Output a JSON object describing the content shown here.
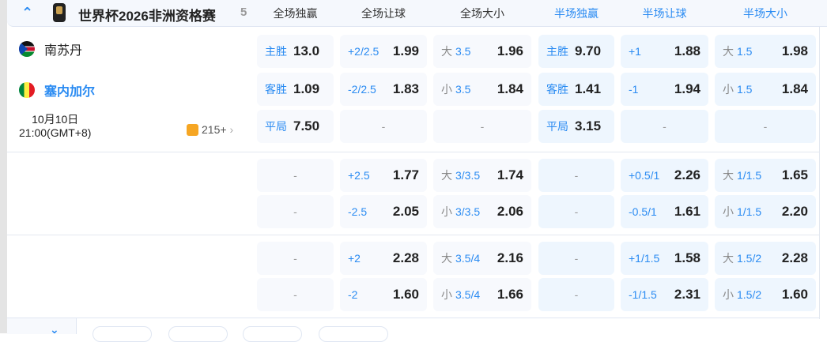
{
  "header": {
    "league": "世界杯2026非洲资格赛",
    "count": "5",
    "columns": [
      "全场独赢",
      "全场让球",
      "全场大小",
      "半场独赢",
      "半场让球",
      "半场大小"
    ]
  },
  "match": {
    "home": "南苏丹",
    "away": "塞内加尔",
    "date": "10月10日",
    "time": "21:00(GMT+8)",
    "more": "215+"
  },
  "rows": [
    [
      [
        "主胜",
        "13.0"
      ],
      [
        "+2/2.5",
        "1.99"
      ],
      [
        "大",
        "3.5",
        "1.96"
      ],
      [
        "主胜",
        "9.70"
      ],
      [
        "+1",
        "1.88"
      ],
      [
        "大",
        "1.5",
        "1.98"
      ]
    ],
    [
      [
        "客胜",
        "1.09"
      ],
      [
        "-2/2.5",
        "1.83"
      ],
      [
        "小",
        "3.5",
        "1.84"
      ],
      [
        "客胜",
        "1.41"
      ],
      [
        "-1",
        "1.94"
      ],
      [
        "小",
        "1.5",
        "1.84"
      ]
    ],
    [
      [
        "平局",
        "7.50"
      ],
      [
        "-"
      ],
      [
        "-"
      ],
      [
        "平局",
        "3.15"
      ],
      [
        "-"
      ],
      [
        "-"
      ]
    ],
    [
      [
        "-"
      ],
      [
        "+2.5",
        "1.77"
      ],
      [
        "大",
        "3/3.5",
        "1.74"
      ],
      [
        "-"
      ],
      [
        "+0.5/1",
        "2.26"
      ],
      [
        "大",
        "1/1.5",
        "1.65"
      ]
    ],
    [
      [
        "-"
      ],
      [
        "-2.5",
        "2.05"
      ],
      [
        "小",
        "3/3.5",
        "2.06"
      ],
      [
        "-"
      ],
      [
        "-0.5/1",
        "1.61"
      ],
      [
        "小",
        "1/1.5",
        "2.20"
      ]
    ],
    [
      [
        "-"
      ],
      [
        "+2",
        "2.28"
      ],
      [
        "大",
        "3.5/4",
        "2.16"
      ],
      [
        "-"
      ],
      [
        "+1/1.5",
        "1.58"
      ],
      [
        "大",
        "1.5/2",
        "2.28"
      ]
    ],
    [
      [
        "-"
      ],
      [
        "-2",
        "1.60"
      ],
      [
        "小",
        "3.5/4",
        "1.66"
      ],
      [
        "-"
      ],
      [
        "-1/1.5",
        "2.31"
      ],
      [
        "小",
        "1.5/2",
        "1.60"
      ]
    ]
  ],
  "colors": {
    "accent": "#2a8bf2",
    "halftime_cell": "#eef6fe",
    "cell": "#f7f9fd"
  }
}
